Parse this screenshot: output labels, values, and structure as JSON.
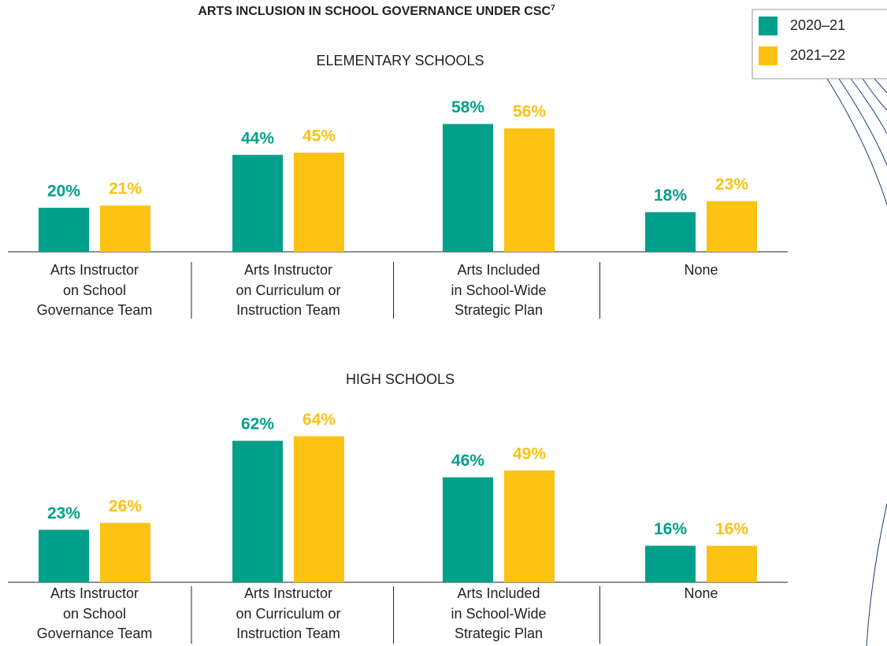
{
  "title": "ARTS INCLUSION IN SCHOOL GOVERNANCE UNDER CSC",
  "title_note": "7",
  "chart_data": [
    {
      "type": "bar",
      "subtitle": "ELEMENTARY SCHOOLS",
      "categories": [
        "Arts Instructor\non School\nGovernance Team",
        "Arts Instructor\non Curriculum or\nInstruction Team",
        "Arts Included\nin School-Wide\nStrategic Plan",
        "None"
      ],
      "series": [
        {
          "name": "2020–21",
          "color": "#00a08a",
          "values": [
            20,
            44,
            58,
            18
          ],
          "value_labels": [
            "20%",
            "44%",
            "58%",
            "18%"
          ]
        },
        {
          "name": "2021–22",
          "color": "#fcc214",
          "values": [
            21,
            45,
            56,
            23
          ],
          "value_labels": [
            "21%",
            "45%",
            "56%",
            "23%"
          ]
        }
      ]
    },
    {
      "type": "bar",
      "subtitle": "HIGH SCHOOLS",
      "categories": [
        "Arts Instructor\non School\nGovernance Team",
        "Arts Instructor\non Curriculum or\nInstruction Team",
        "Arts Included\nin School-Wide\nStrategic Plan",
        "None"
      ],
      "series": [
        {
          "name": "2020–21",
          "color": "#00a08a",
          "values": [
            23,
            62,
            46,
            16
          ],
          "value_labels": [
            "23%",
            "62%",
            "46%",
            "16%"
          ]
        },
        {
          "name": "2021–22",
          "color": "#fcc214",
          "values": [
            26,
            64,
            49,
            16
          ],
          "value_labels": [
            "26%",
            "64%",
            "49%",
            "16%"
          ]
        }
      ]
    }
  ]
}
